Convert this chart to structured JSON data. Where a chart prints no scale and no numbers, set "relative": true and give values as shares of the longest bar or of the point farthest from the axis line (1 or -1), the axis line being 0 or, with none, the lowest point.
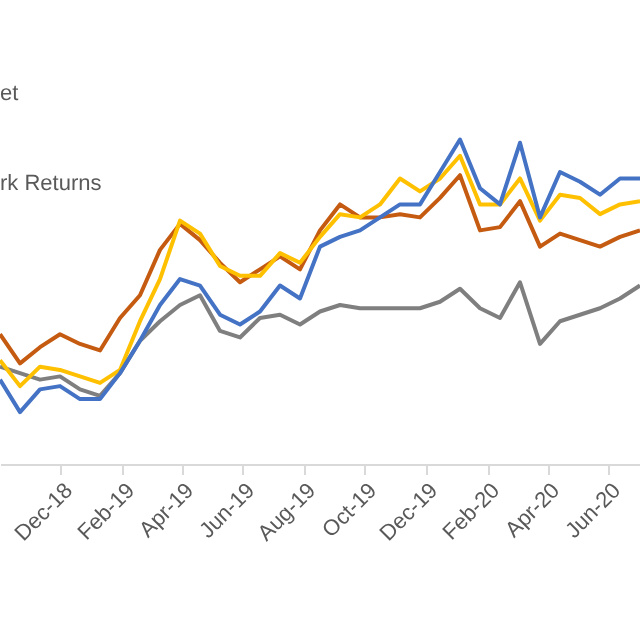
{
  "chart_data": {
    "type": "line",
    "relative": true,
    "x": [
      "2018-10-02",
      "2018-10-22",
      "2018-11-11",
      "2018-12-01",
      "2018-12-21",
      "2019-01-10",
      "2019-01-30",
      "2019-02-19",
      "2019-03-11",
      "2019-03-31",
      "2019-04-20",
      "2019-05-10",
      "2019-05-30",
      "2019-06-19",
      "2019-07-09",
      "2019-07-29",
      "2019-08-18",
      "2019-09-07",
      "2019-09-27",
      "2019-10-17",
      "2019-11-06",
      "2019-11-26",
      "2019-12-16",
      "2020-01-05",
      "2020-01-25",
      "2020-02-14",
      "2020-03-05",
      "2020-03-25",
      "2020-04-14",
      "2020-05-04",
      "2020-05-24",
      "2020-06-13",
      "2020-07-03"
    ],
    "xlim": [
      "2018-10-02",
      "2020-07-03"
    ],
    "xticks": [
      {
        "value": "2018-12-01",
        "label": "Dec-18"
      },
      {
        "value": "2019-02-01",
        "label": "Feb-19"
      },
      {
        "value": "2019-04-01",
        "label": "Apr-19"
      },
      {
        "value": "2019-06-01",
        "label": "Jun-19"
      },
      {
        "value": "2019-08-01",
        "label": "Aug-19"
      },
      {
        "value": "2019-10-01",
        "label": "Oct-19"
      },
      {
        "value": "2019-12-01",
        "label": "Dec-19"
      },
      {
        "value": "2020-02-01",
        "label": "Feb-20"
      },
      {
        "value": "2020-04-01",
        "label": "Apr-20"
      },
      {
        "value": "2020-06-01",
        "label": "Jun-20"
      }
    ],
    "tick_labels": "x",
    "grid": false,
    "legend": false,
    "marker": "none",
    "line_style": "solid",
    "annotations": [
      "et",
      "rk Returns"
    ],
    "series": [
      {
        "color": "#7f7f7f",
        "values": [
          0.3,
          0.28,
          0.26,
          0.27,
          0.23,
          0.21,
          0.28,
          0.38,
          0.44,
          0.49,
          0.52,
          0.41,
          0.39,
          0.45,
          0.46,
          0.43,
          0.47,
          0.49,
          0.48,
          0.48,
          0.48,
          0.48,
          0.5,
          0.54,
          0.48,
          0.45,
          0.56,
          0.37,
          0.44,
          0.46,
          0.48,
          0.51,
          0.55
        ]
      },
      {
        "color": "#c55a11",
        "values": [
          0.4,
          0.31,
          0.36,
          0.4,
          0.37,
          0.35,
          0.45,
          0.52,
          0.66,
          0.74,
          0.69,
          0.62,
          0.56,
          0.6,
          0.64,
          0.6,
          0.72,
          0.8,
          0.76,
          0.76,
          0.77,
          0.76,
          0.82,
          0.89,
          0.72,
          0.73,
          0.81,
          0.67,
          0.71,
          0.69,
          0.67,
          0.7,
          0.72
        ]
      },
      {
        "color": "#ffc000",
        "values": [
          0.32,
          0.24,
          0.3,
          0.29,
          0.27,
          0.25,
          0.29,
          0.44,
          0.57,
          0.75,
          0.71,
          0.61,
          0.58,
          0.58,
          0.65,
          0.62,
          0.7,
          0.77,
          0.76,
          0.8,
          0.88,
          0.84,
          0.88,
          0.95,
          0.8,
          0.8,
          0.88,
          0.75,
          0.83,
          0.82,
          0.77,
          0.8,
          0.81
        ]
      },
      {
        "color": "#4472c4",
        "values": [
          0.26,
          0.16,
          0.23,
          0.24,
          0.2,
          0.2,
          0.28,
          0.38,
          0.49,
          0.57,
          0.55,
          0.46,
          0.43,
          0.47,
          0.55,
          0.51,
          0.67,
          0.7,
          0.72,
          0.76,
          0.8,
          0.8,
          0.9,
          1.0,
          0.85,
          0.8,
          0.99,
          0.76,
          0.9,
          0.87,
          0.83,
          0.88,
          0.88
        ]
      }
    ]
  }
}
